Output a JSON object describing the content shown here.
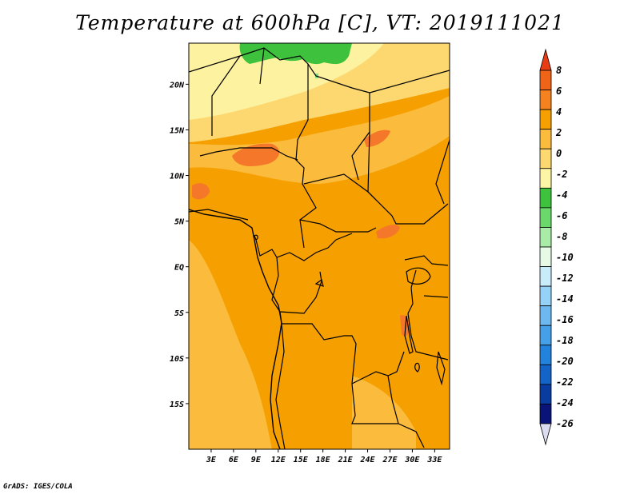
{
  "title": "Temperature at 600hPa [C], VT: 2019111021",
  "credit": "GrADS: IGES/COLA",
  "map": {
    "variable": "Temperature",
    "level": "600hPa",
    "units": "C",
    "valid_time": "2019111021",
    "lon_range": [
      0,
      35
    ],
    "lat_range": [
      -20,
      24.5
    ],
    "lon_ticks": [
      "3E",
      "6E",
      "9E",
      "12E",
      "15E",
      "18E",
      "21E",
      "24E",
      "27E",
      "30E",
      "33E"
    ],
    "lat_ticks": [
      "20N",
      "15N",
      "10N",
      "5N",
      "EQ",
      "5S",
      "10S",
      "15S"
    ],
    "colors": {
      "land_main": "#f5a000",
      "land_light": "#fbbb3c",
      "band_cool": "#fdd870",
      "band_coolest": "#fdf2a0",
      "warm_patch": "#f5782a",
      "cold_patch": "#3ec23e",
      "cold_patch_light": "#7ee07e",
      "border": "#000000"
    }
  },
  "colorbar": {
    "labels": [
      "8",
      "6",
      "4",
      "2",
      "0",
      "-2",
      "-4",
      "-6",
      "-8",
      "-10",
      "-12",
      "-14",
      "-16",
      "-18",
      "-20",
      "-22",
      "-24",
      "-26"
    ],
    "colors": [
      "#e83c14",
      "#f06418",
      "#f5821e",
      "#f5a000",
      "#fbbb3c",
      "#fdd870",
      "#fdf5a6",
      "#3ec23e",
      "#6ad86a",
      "#a8eca8",
      "#e6fae6",
      "#c8ecfa",
      "#96d2f8",
      "#6eb8f0",
      "#46a0e8",
      "#2382dc",
      "#1464c8",
      "#0a3ca0",
      "#0a1478",
      "#dcdcf0"
    ]
  }
}
